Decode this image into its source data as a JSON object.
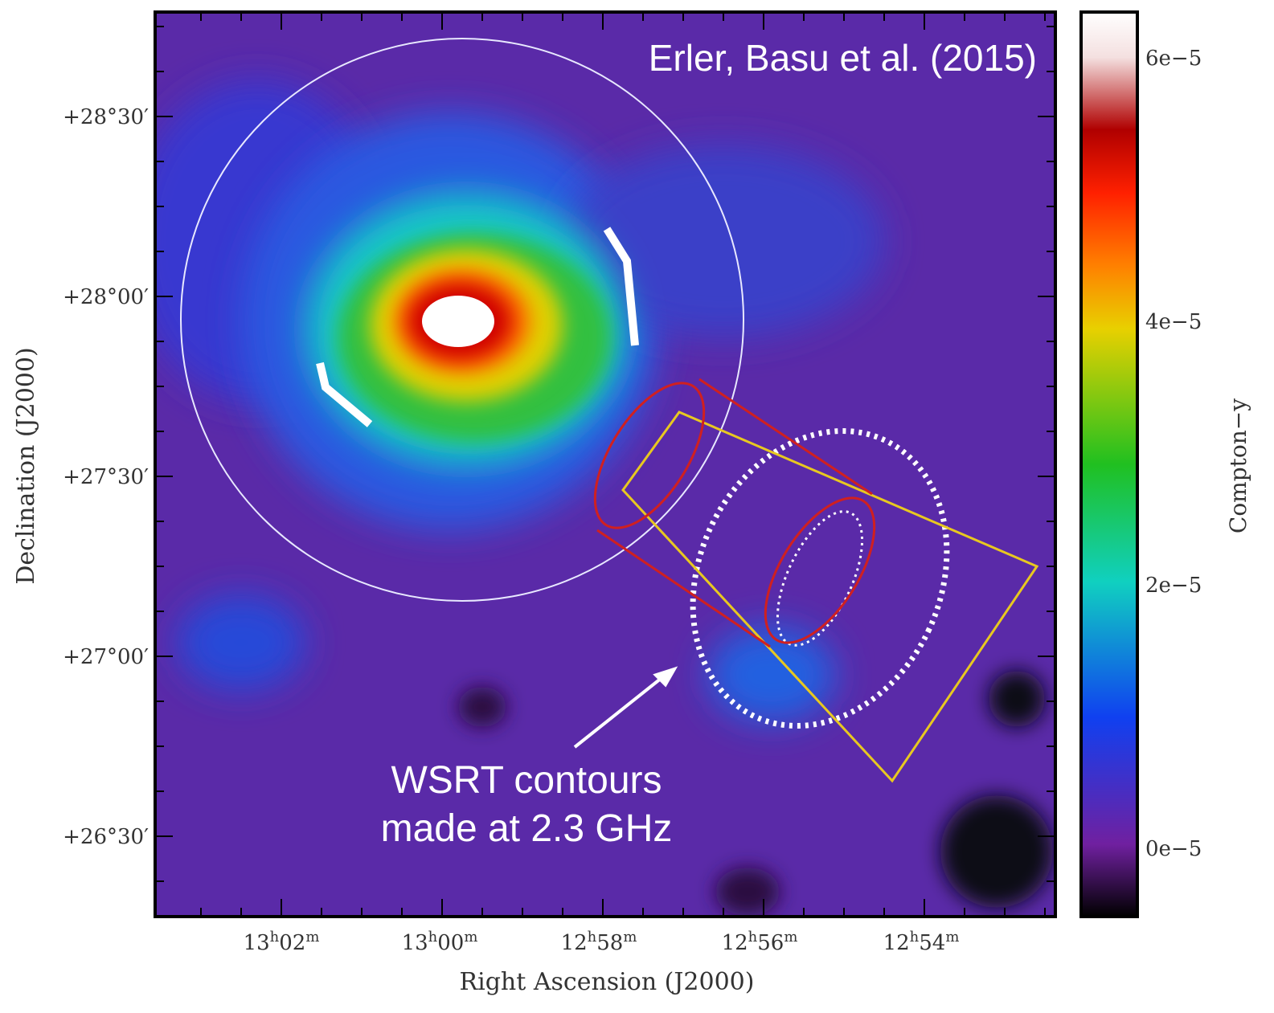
{
  "figure": {
    "title": "Erler, Basu et al. (2015)",
    "x_label": "Right Ascension (J2000)",
    "y_label": "Declination (J2000)",
    "colorbar_label": "Compton−y",
    "y_ticks": [
      "+28°30′",
      "+28°00′",
      "+27°30′",
      "+27°00′",
      "+26°30′"
    ],
    "x_ticks": [
      [
        "13",
        "h",
        "02",
        "m"
      ],
      [
        "13",
        "h",
        "00",
        "m"
      ],
      [
        "12",
        "h",
        "58",
        "m"
      ],
      [
        "12",
        "h",
        "56",
        "m"
      ],
      [
        "12",
        "h",
        "54",
        "m"
      ]
    ],
    "colorbar_ticks": [
      "6e−5",
      "4e−5",
      "2e−5",
      "0e−5"
    ],
    "annotation": [
      "WSRT contours",
      "made at 2.3 GHz"
    ]
  }
}
